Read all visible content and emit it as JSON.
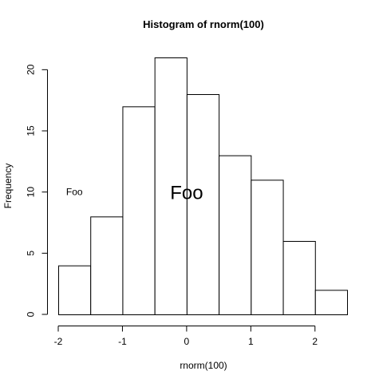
{
  "chart_data": {
    "type": "bar",
    "subtype": "histogram",
    "title": "Histogram of rnorm(100)",
    "xlabel": "rnorm(100)",
    "ylabel": "Frequency",
    "bins": [
      {
        "start": -2.0,
        "end": -1.5,
        "count": 4
      },
      {
        "start": -1.5,
        "end": -1.0,
        "count": 8
      },
      {
        "start": -1.0,
        "end": -0.5,
        "count": 17
      },
      {
        "start": -0.5,
        "end": 0.0,
        "count": 21
      },
      {
        "start": 0.0,
        "end": 0.5,
        "count": 18
      },
      {
        "start": 0.5,
        "end": 1.0,
        "count": 13
      },
      {
        "start": 1.0,
        "end": 1.5,
        "count": 11
      },
      {
        "start": 1.5,
        "end": 2.0,
        "count": 6
      },
      {
        "start": 2.0,
        "end": 2.5,
        "count": 2
      }
    ],
    "xlim": [
      -2.0,
      2.5
    ],
    "ylim": [
      0,
      21
    ],
    "xticks": [
      "-2",
      "-1",
      "0",
      "1",
      "2"
    ],
    "yticks": [
      "0",
      "5",
      "10",
      "15",
      "20"
    ],
    "annotations": [
      {
        "text": "Foo",
        "x": -1.5,
        "y": 10,
        "size": "small"
      },
      {
        "text": "Foo",
        "x": 0.0,
        "y": 10,
        "size": "large"
      }
    ],
    "grid": false,
    "legend": "none"
  }
}
